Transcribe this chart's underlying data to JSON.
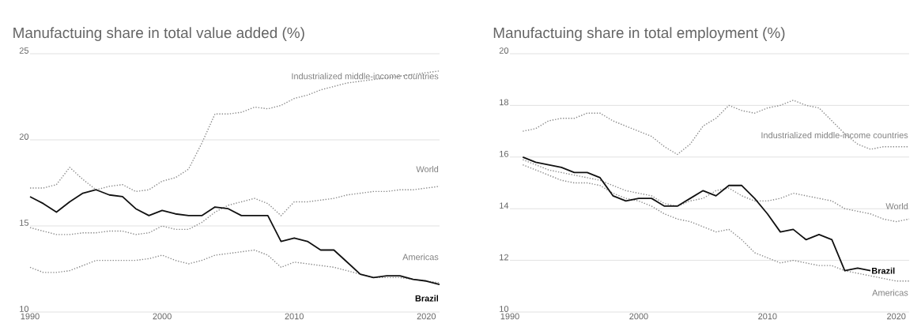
{
  "chart_data": [
    {
      "type": "line",
      "title": "Manufactuing share in total value added (%)",
      "x": [
        1990,
        1991,
        1992,
        1993,
        1994,
        1995,
        1996,
        1997,
        1998,
        1999,
        2000,
        2001,
        2002,
        2003,
        2004,
        2005,
        2006,
        2007,
        2008,
        2009,
        2010,
        2011,
        2012,
        2013,
        2014,
        2015,
        2016,
        2017,
        2018,
        2019,
        2020,
        2021
      ],
      "xlim": [
        1990,
        2021
      ],
      "xticks": [
        1990,
        2000,
        2010,
        2020
      ],
      "ylim": [
        10,
        25
      ],
      "yticks": [
        10,
        15,
        20,
        25
      ],
      "grid": "y",
      "series": [
        {
          "name": "Industrialized middle-income countries",
          "color": "#8a8a8a",
          "line_style": "dotted",
          "values": [
            17.2,
            17.2,
            17.4,
            18.4,
            17.7,
            17.1,
            17.3,
            17.4,
            17.0,
            17.1,
            17.6,
            17.8,
            18.3,
            19.8,
            21.5,
            21.5,
            21.6,
            21.9,
            21.8,
            22.0,
            22.4,
            22.6,
            22.9,
            23.1,
            23.3,
            23.4,
            23.5,
            23.6,
            23.7,
            23.8,
            23.9,
            24.0
          ]
        },
        {
          "name": "World",
          "color": "#8a8a8a",
          "line_style": "dotted",
          "values": [
            14.9,
            14.7,
            14.5,
            14.5,
            14.6,
            14.6,
            14.7,
            14.7,
            14.5,
            14.6,
            15.0,
            14.8,
            14.8,
            15.2,
            15.8,
            16.2,
            16.4,
            16.6,
            16.3,
            15.6,
            16.4,
            16.4,
            16.5,
            16.6,
            16.8,
            16.9,
            17.0,
            17.0,
            17.1,
            17.1,
            17.2,
            17.3
          ]
        },
        {
          "name": "Americas",
          "color": "#8a8a8a",
          "line_style": "dotted",
          "values": [
            12.6,
            12.3,
            12.3,
            12.4,
            12.7,
            13.0,
            13.0,
            13.0,
            13.0,
            13.1,
            13.3,
            13.0,
            12.8,
            13.0,
            13.3,
            13.4,
            13.5,
            13.6,
            13.3,
            12.6,
            12.9,
            12.8,
            12.7,
            12.6,
            12.4,
            12.2,
            12.0,
            12.0,
            12.0,
            11.9,
            11.8,
            11.7
          ]
        },
        {
          "name": "Brazil",
          "color": "#111111",
          "line_style": "solid",
          "values": [
            16.7,
            16.3,
            15.8,
            16.4,
            16.9,
            17.1,
            16.8,
            16.7,
            16.0,
            15.6,
            15.9,
            15.7,
            15.6,
            15.6,
            16.1,
            16.0,
            15.6,
            15.6,
            15.6,
            14.1,
            14.3,
            14.1,
            13.6,
            13.6,
            12.9,
            12.2,
            12.0,
            12.1,
            12.1,
            11.9,
            11.8,
            11.6
          ]
        }
      ]
    },
    {
      "type": "line",
      "title": "Manufactuing share in total employment (%)",
      "x": [
        1991,
        1992,
        1993,
        1994,
        1995,
        1996,
        1997,
        1998,
        1999,
        2000,
        2001,
        2002,
        2003,
        2004,
        2005,
        2006,
        2007,
        2008,
        2009,
        2010,
        2011,
        2012,
        2013,
        2014,
        2015,
        2016,
        2017,
        2018,
        2019,
        2020,
        2021
      ],
      "xlim": [
        1990,
        2021
      ],
      "xticks": [
        1990,
        2000,
        2010,
        2020
      ],
      "ylim": [
        10,
        20
      ],
      "yticks": [
        10,
        12,
        14,
        16,
        18,
        20
      ],
      "grid": "y",
      "series": [
        {
          "name": "Industrialized middle-income countries",
          "color": "#8a8a8a",
          "line_style": "dotted",
          "values": [
            17.0,
            17.1,
            17.4,
            17.5,
            17.5,
            17.7,
            17.7,
            17.4,
            17.2,
            17.0,
            16.8,
            16.4,
            16.1,
            16.5,
            17.2,
            17.5,
            18.0,
            17.8,
            17.7,
            17.9,
            18.0,
            18.2,
            18.0,
            17.9,
            17.4,
            16.9,
            16.5,
            16.3,
            16.4,
            16.4,
            16.4
          ]
        },
        {
          "name": "World",
          "color": "#8a8a8a",
          "line_style": "dotted",
          "values": [
            15.9,
            15.7,
            15.5,
            15.4,
            15.3,
            15.2,
            15.1,
            14.9,
            14.7,
            14.6,
            14.5,
            14.2,
            14.1,
            14.3,
            14.4,
            14.7,
            14.8,
            14.5,
            14.3,
            14.3,
            14.4,
            14.6,
            14.5,
            14.4,
            14.3,
            14.0,
            13.9,
            13.8,
            13.6,
            13.5,
            13.6
          ]
        },
        {
          "name": "Americas",
          "color": "#8a8a8a",
          "line_style": "dotted",
          "values": [
            15.7,
            15.5,
            15.3,
            15.1,
            15.0,
            15.0,
            14.9,
            14.6,
            14.4,
            14.3,
            14.1,
            13.8,
            13.6,
            13.5,
            13.3,
            13.1,
            13.2,
            12.8,
            12.3,
            12.1,
            11.9,
            12.0,
            11.9,
            11.8,
            11.8,
            11.6,
            11.5,
            11.4,
            11.3,
            11.2,
            11.2
          ]
        },
        {
          "name": "Brazil",
          "color": "#111111",
          "line_style": "solid",
          "values": [
            16.0,
            15.8,
            15.7,
            15.6,
            15.4,
            15.4,
            15.2,
            14.5,
            14.3,
            14.4,
            14.4,
            14.1,
            14.1,
            14.4,
            14.7,
            14.5,
            14.9,
            14.9,
            14.4,
            13.8,
            13.1,
            13.2,
            12.8,
            13.0,
            12.8,
            11.6,
            11.7,
            11.6,
            null,
            null,
            null
          ]
        }
      ]
    }
  ]
}
